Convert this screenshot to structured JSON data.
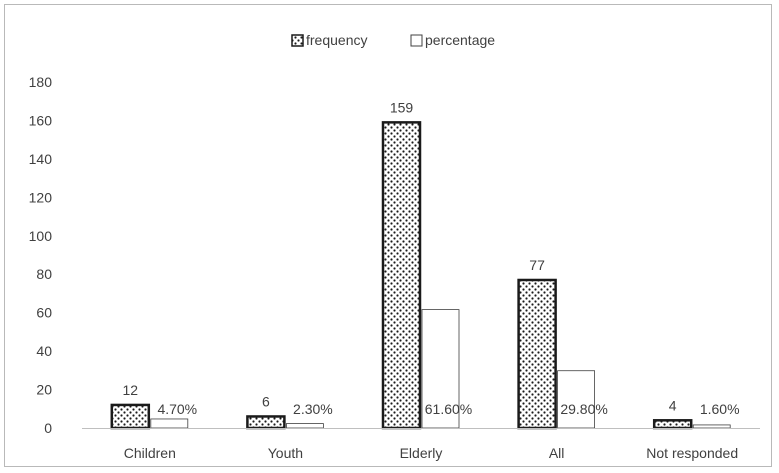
{
  "chart_data": {
    "type": "bar",
    "categories": [
      "Children",
      "Youth",
      "Elderly",
      "All",
      "Not responded"
    ],
    "series": [
      {
        "name": "frequency",
        "values": [
          12,
          6,
          159,
          77,
          4
        ],
        "labels": [
          "12",
          "6",
          "159",
          "77",
          "4"
        ]
      },
      {
        "name": "percentage",
        "values": [
          4.7,
          2.3,
          61.6,
          29.8,
          1.6
        ],
        "labels": [
          "4.70%",
          "2.30%",
          "61.60%",
          "29.80%",
          "1.60%"
        ]
      }
    ],
    "ylim": [
      0,
      180
    ],
    "yticks": [
      0,
      20,
      40,
      60,
      80,
      100,
      120,
      140,
      160,
      180
    ],
    "grid": false,
    "legend_position": "top-center",
    "colors": {
      "frequency_fill": "#ffffff",
      "frequency_pattern": "#1a1a1a",
      "percentage_fill": "#ffffff",
      "axis": "#bfbfbf",
      "text": "#404040"
    }
  }
}
